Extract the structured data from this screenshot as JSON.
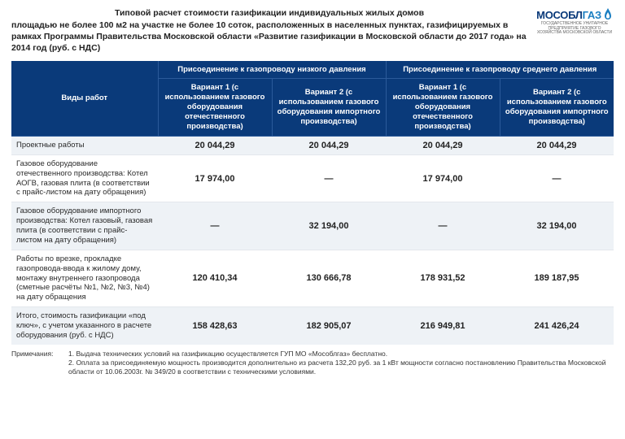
{
  "header": {
    "title_line1": "Типовой расчет стоимости газификации индивидуальных жилых домов",
    "title_line2": "площадью не более 100 м2 на участке не более 10 соток, расположенных в населенных пунктах, газифицируемых в рамках Программы Правительства Московской области «Развитие газификации в Московской области до 2017 года» на 2014 год (руб. с НДС)"
  },
  "logo": {
    "part1": "М",
    "part2": "ОСОБЛ",
    "part3": "ГАЗ",
    "tagline": "ГОСУДАРСТВЕННОЕ УНИТАРНОЕ ПРЕДПРИЯТИЕ ГАЗОВОГО ХОЗЯЙСТВА МОСКОВСКОЙ ОБЛАСТИ"
  },
  "table": {
    "col_work": "Виды работ",
    "group_low": "Присоединение к газопроводу низкого давления",
    "group_med": "Присоединение к газопроводу среднего давления",
    "variant1": "Вариант 1\n(с использованием газового оборудования отечественного производства)",
    "variant2": "Вариант 2\n(с использованием газового оборудования импортного производства)",
    "rows": [
      {
        "label": "Проектные работы",
        "v": [
          "20 044,29",
          "20 044,29",
          "20 044,29",
          "20 044,29"
        ],
        "stripe": true
      },
      {
        "label": "Газовое оборудование отечественного производства: Котел АОГВ, газовая плита (в соответствии с прайс-листом на дату обращения)",
        "v": [
          "17 974,00",
          "—",
          "17 974,00",
          "—"
        ],
        "stripe": false
      },
      {
        "label": "Газовое оборудование импортного производства: Котел газовый, газовая плита (в соответствии с прайс-листом на дату обращения)",
        "v": [
          "—",
          "32 194,00",
          "—",
          "32 194,00"
        ],
        "stripe": true
      },
      {
        "label": "Работы по врезке, прокладке газопровода-ввода к жилому дому, монтажу внутреннего газопровода (сметные расчёты №1, №2, №3, №4) на дату обращения",
        "v": [
          "120 410,34",
          "130 666,78",
          "178 931,52",
          "189 187,95"
        ],
        "stripe": false
      },
      {
        "label": "Итого, стоимость газификации «под ключ», с учетом указанного в расчете оборудования (руб. с НДС)",
        "v": [
          "158 428,63",
          "182 905,07",
          "216 949,81",
          "241 426,24"
        ],
        "stripe": true
      }
    ]
  },
  "notes": {
    "label": "Примечания:",
    "line1": "1. Выдача технических условий на газификацию осуществляется ГУП МО «Мособлгаз» бесплатно.",
    "line2": "2. Оплата за присоединяемую мощность производится дополнительно из расчета 132,20 руб. за 1 кВт мощности согласно постановлению Правительства Московской области от 10.06.2003г. № 349/20 в соответствии с техническими условиями."
  },
  "colors": {
    "header_bg": "#0a3a7a",
    "stripe_bg": "#eef2f6"
  }
}
